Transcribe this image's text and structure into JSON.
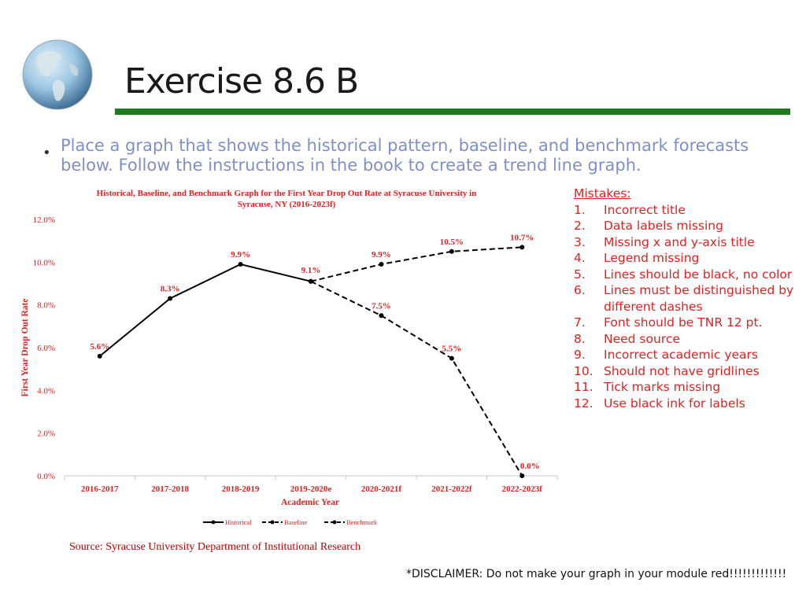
{
  "slide": {
    "title": "Exercise 8.6 B",
    "bullet": "Place a graph that shows the historical pattern, baseline, and benchmark forecasts below.  Follow the instructions in the book to create a trend line graph.",
    "source": "Source: Syracuse University Department of Institutional Research",
    "disclaimer": "*DISCLAIMER: Do not make your graph in your module red!!!!!!!!!!!!!"
  },
  "mistakes": {
    "heading": "Mistakes:",
    "items": [
      {
        "num": "1.",
        "text": "Incorrect title"
      },
      {
        "num": "2.",
        "text": "Data labels missing"
      },
      {
        "num": "3.",
        "text": "Missing x and y-axis title"
      },
      {
        "num": "4.",
        "text": "Legend missing"
      },
      {
        "num": "5.",
        "text": "Lines should be black, no color"
      },
      {
        "num": "6.",
        "text": "Lines must be distinguished by different dashes"
      },
      {
        "num": "7.",
        "text": "Font should be TNR 12 pt."
      },
      {
        "num": "8.",
        "text": "Need source"
      },
      {
        "num": "9.",
        "text": "Incorrect academic years"
      },
      {
        "num": "10.",
        "text": "Should not have gridlines"
      },
      {
        "num": "11.",
        "text": "Tick marks missing"
      },
      {
        "num": "12.",
        "text": "Use black ink for labels"
      }
    ]
  },
  "colors": {
    "title_rule": "#1f7a1f",
    "chart_text": "#e32020",
    "axis_line": "#c8c8c8",
    "line": "#000000"
  },
  "chart_data": {
    "type": "line",
    "title_line1": "Historical, Baseline, and Benchmark Graph for the First Year Drop Out Rate at Syracuse University in",
    "title_line2": "Syracuse, NY (2016-2023f)",
    "xlabel": "Academic Year",
    "ylabel": "First Year Drop Out Rate",
    "categories": [
      "2016-2017",
      "2017-2018",
      "2018-2019",
      "2019-2020e",
      "2020-2021f",
      "2021-2022f",
      "2022-2023f"
    ],
    "y_ticks": [
      "0.0%",
      "2.0%",
      "4.0%",
      "6.0%",
      "8.0%",
      "10.0%",
      "12.0%"
    ],
    "ylim": [
      0,
      12
    ],
    "legend_position": "bottom",
    "series": [
      {
        "name": "Historical",
        "style": "solid",
        "values": [
          5.6,
          8.3,
          9.9,
          9.1,
          null,
          null,
          null
        ],
        "labels": [
          "5.6%",
          "8.3%",
          "9.9%",
          null,
          null,
          null,
          null
        ]
      },
      {
        "name": "Baseline",
        "style": "dashed",
        "values": [
          null,
          null,
          null,
          9.1,
          7.5,
          5.5,
          0.0
        ],
        "labels": [
          null,
          null,
          null,
          "9.1%",
          "7.5%",
          "5.5%",
          "0.0%"
        ]
      },
      {
        "name": "Benchmark",
        "style": "dashed",
        "values": [
          null,
          null,
          null,
          9.1,
          9.9,
          10.5,
          10.7
        ],
        "labels": [
          null,
          null,
          null,
          null,
          "9.9%",
          "10.5%",
          "10.7%"
        ]
      }
    ]
  }
}
